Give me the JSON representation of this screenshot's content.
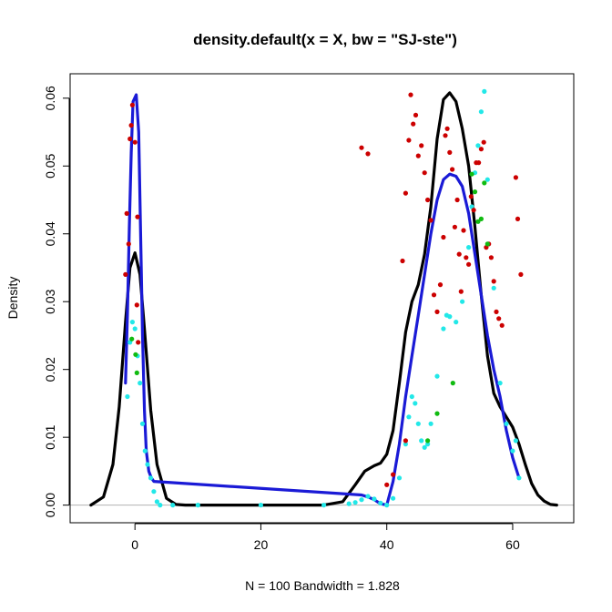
{
  "chart_data": {
    "type": "line",
    "title": "density.default(x = X, bw = \"SJ-ste\")",
    "xlabel": "N = 100   Bandwidth = 1.828",
    "ylabel": "Density",
    "xlim": [
      -10.3,
      69.7
    ],
    "ylim": [
      -0.0026,
      0.0636
    ],
    "x_ticks": [
      0,
      20,
      40,
      60
    ],
    "x_tick_labels": [
      "0",
      "20",
      "40",
      "60"
    ],
    "y_ticks": [
      0.0,
      0.01,
      0.02,
      0.03,
      0.04,
      0.05,
      0.06
    ],
    "y_tick_labels": [
      "0.00",
      "0.01",
      "0.02",
      "0.03",
      "0.04",
      "0.05",
      "0.06"
    ],
    "zero_line": 0,
    "colors": {
      "black": "#000000",
      "blue": "#1a1ad6",
      "cyan": "#22e8e8",
      "red": "#cc0000",
      "green": "#11bb11",
      "zero": "#b3b3b3"
    },
    "series": [
      {
        "style": "line",
        "color": "#000000",
        "x": [
          -7.0,
          -5,
          -3.5,
          -2.5,
          -1.5,
          -0.8,
          0,
          0.8,
          1.5,
          2.5,
          3.5,
          5,
          6.5,
          8,
          12,
          20,
          30,
          33,
          35,
          36.5,
          38,
          39,
          40,
          41,
          42,
          43,
          44,
          45,
          46,
          47,
          48,
          49,
          50,
          51,
          52,
          53,
          54,
          55,
          56,
          57,
          58,
          59,
          60,
          61,
          62,
          63,
          64,
          65,
          66,
          67
        ],
        "y": [
          0,
          0.0012,
          0.006,
          0.0145,
          0.027,
          0.035,
          0.0372,
          0.034,
          0.026,
          0.014,
          0.006,
          0.001,
          0.0001,
          0,
          0,
          0,
          0,
          0.0005,
          0.003,
          0.005,
          0.0058,
          0.0062,
          0.0075,
          0.011,
          0.018,
          0.0255,
          0.03,
          0.0325,
          0.037,
          0.044,
          0.054,
          0.0598,
          0.0608,
          0.0595,
          0.0555,
          0.05,
          0.041,
          0.031,
          0.022,
          0.0165,
          0.0145,
          0.013,
          0.0115,
          0.009,
          0.006,
          0.0032,
          0.0015,
          0.0006,
          0.0001,
          0
        ]
      },
      {
        "style": "line",
        "color": "#1a1ad6",
        "x": [
          -1.5,
          -1.2,
          -0.9,
          -0.6,
          -0.3,
          0.2,
          0.6,
          0.9,
          1.2,
          1.5,
          1.8,
          2.2,
          2.6,
          3.0,
          36,
          37,
          38,
          39,
          40,
          41,
          42,
          43,
          44,
          45,
          46,
          47,
          48,
          49,
          50,
          51,
          52,
          53,
          54,
          55,
          56,
          57,
          58,
          59,
          60,
          61
        ],
        "y": [
          0.018,
          0.028,
          0.041,
          0.052,
          0.0595,
          0.0605,
          0.055,
          0.04,
          0.025,
          0.014,
          0.008,
          0.005,
          0.004,
          0.0035,
          0.0015,
          0.0012,
          0.0008,
          0.0002,
          0,
          0.0035,
          0.009,
          0.016,
          0.022,
          0.028,
          0.034,
          0.04,
          0.045,
          0.048,
          0.0488,
          0.0485,
          0.047,
          0.043,
          0.037,
          0.031,
          0.025,
          0.02,
          0.016,
          0.011,
          0.007,
          0.004
        ]
      },
      {
        "style": "points",
        "color": "#22e8e8",
        "x": [
          -1.2,
          -0.8,
          -0.4,
          0,
          0.4,
          0.8,
          1.2,
          1.6,
          2.0,
          2.5,
          3.0,
          3.5,
          4,
          6,
          10,
          20,
          30,
          34,
          35,
          36,
          37,
          38,
          39,
          40,
          41,
          42,
          43,
          43.5,
          44,
          44.5,
          45,
          45.5,
          46,
          46.5,
          47,
          48,
          49,
          49.5,
          50,
          51,
          52,
          53,
          53.5,
          54,
          54.5,
          55,
          55.5,
          56,
          57,
          58,
          59,
          60,
          60.5,
          61
        ],
        "y": [
          0.016,
          0.024,
          0.027,
          0.026,
          0.022,
          0.018,
          0.012,
          0.008,
          0.006,
          0.004,
          0.002,
          0.0005,
          0,
          0,
          0,
          0,
          0,
          0.0002,
          0.0004,
          0.0008,
          0.0013,
          0.0009,
          0.0003,
          0,
          0.001,
          0.004,
          0.009,
          0.013,
          0.016,
          0.015,
          0.012,
          0.0095,
          0.0085,
          0.009,
          0.012,
          0.019,
          0.026,
          0.028,
          0.0278,
          0.027,
          0.03,
          0.038,
          0.044,
          0.049,
          0.053,
          0.058,
          0.061,
          0.048,
          0.032,
          0.018,
          0.012,
          0.008,
          0.0095,
          0.004
        ]
      },
      {
        "style": "points",
        "color": "#cc0000",
        "x": [
          -1.5,
          -1.3,
          -1.0,
          -0.8,
          -0.6,
          -0.4,
          0,
          0.3,
          0.5,
          0.4,
          36.0,
          37.0,
          42.5,
          43.0,
          43.5,
          43.8,
          44.2,
          44.6,
          45.0,
          45.5,
          46.0,
          46.5,
          47.0,
          47.5,
          48.0,
          48.5,
          49.0,
          49.3,
          49.6,
          50.0,
          50.4,
          50.8,
          51.2,
          51.5,
          51.8,
          52.2,
          52.6,
          53.0,
          53.4,
          53.8,
          54.2,
          54.6,
          55.0,
          55.4,
          55.8,
          56.2,
          56.6,
          57.0,
          57.4,
          57.8,
          58.3,
          60.5,
          60.8,
          61.3,
          41.0,
          40.0,
          43.0
        ],
        "y": [
          0.034,
          0.043,
          0.0385,
          0.054,
          0.056,
          0.059,
          0.0535,
          0.0295,
          0.024,
          0.0425,
          0.0527,
          0.0518,
          0.036,
          0.046,
          0.0538,
          0.0605,
          0.0562,
          0.0575,
          0.0515,
          0.053,
          0.049,
          0.045,
          0.042,
          0.031,
          0.0285,
          0.0325,
          0.0395,
          0.0545,
          0.0555,
          0.052,
          0.0495,
          0.041,
          0.045,
          0.037,
          0.0315,
          0.0405,
          0.0365,
          0.0355,
          0.0455,
          0.0435,
          0.0505,
          0.0505,
          0.0525,
          0.0535,
          0.038,
          0.0385,
          0.0365,
          0.033,
          0.0285,
          0.0275,
          0.0265,
          0.0483,
          0.0422,
          0.034,
          0.0045,
          0.003,
          0.0095
        ]
      },
      {
        "style": "points",
        "color": "#11bb11",
        "x": [
          -0.5,
          0.1,
          0.3,
          53.5,
          54.0,
          54.5,
          55.0,
          55.5,
          56.0,
          46.5,
          48.0,
          50.5
        ],
        "y": [
          0.0245,
          0.0222,
          0.0195,
          0.0488,
          0.0462,
          0.0418,
          0.0422,
          0.0475,
          0.0385,
          0.0095,
          0.0135,
          0.018
        ]
      }
    ]
  }
}
